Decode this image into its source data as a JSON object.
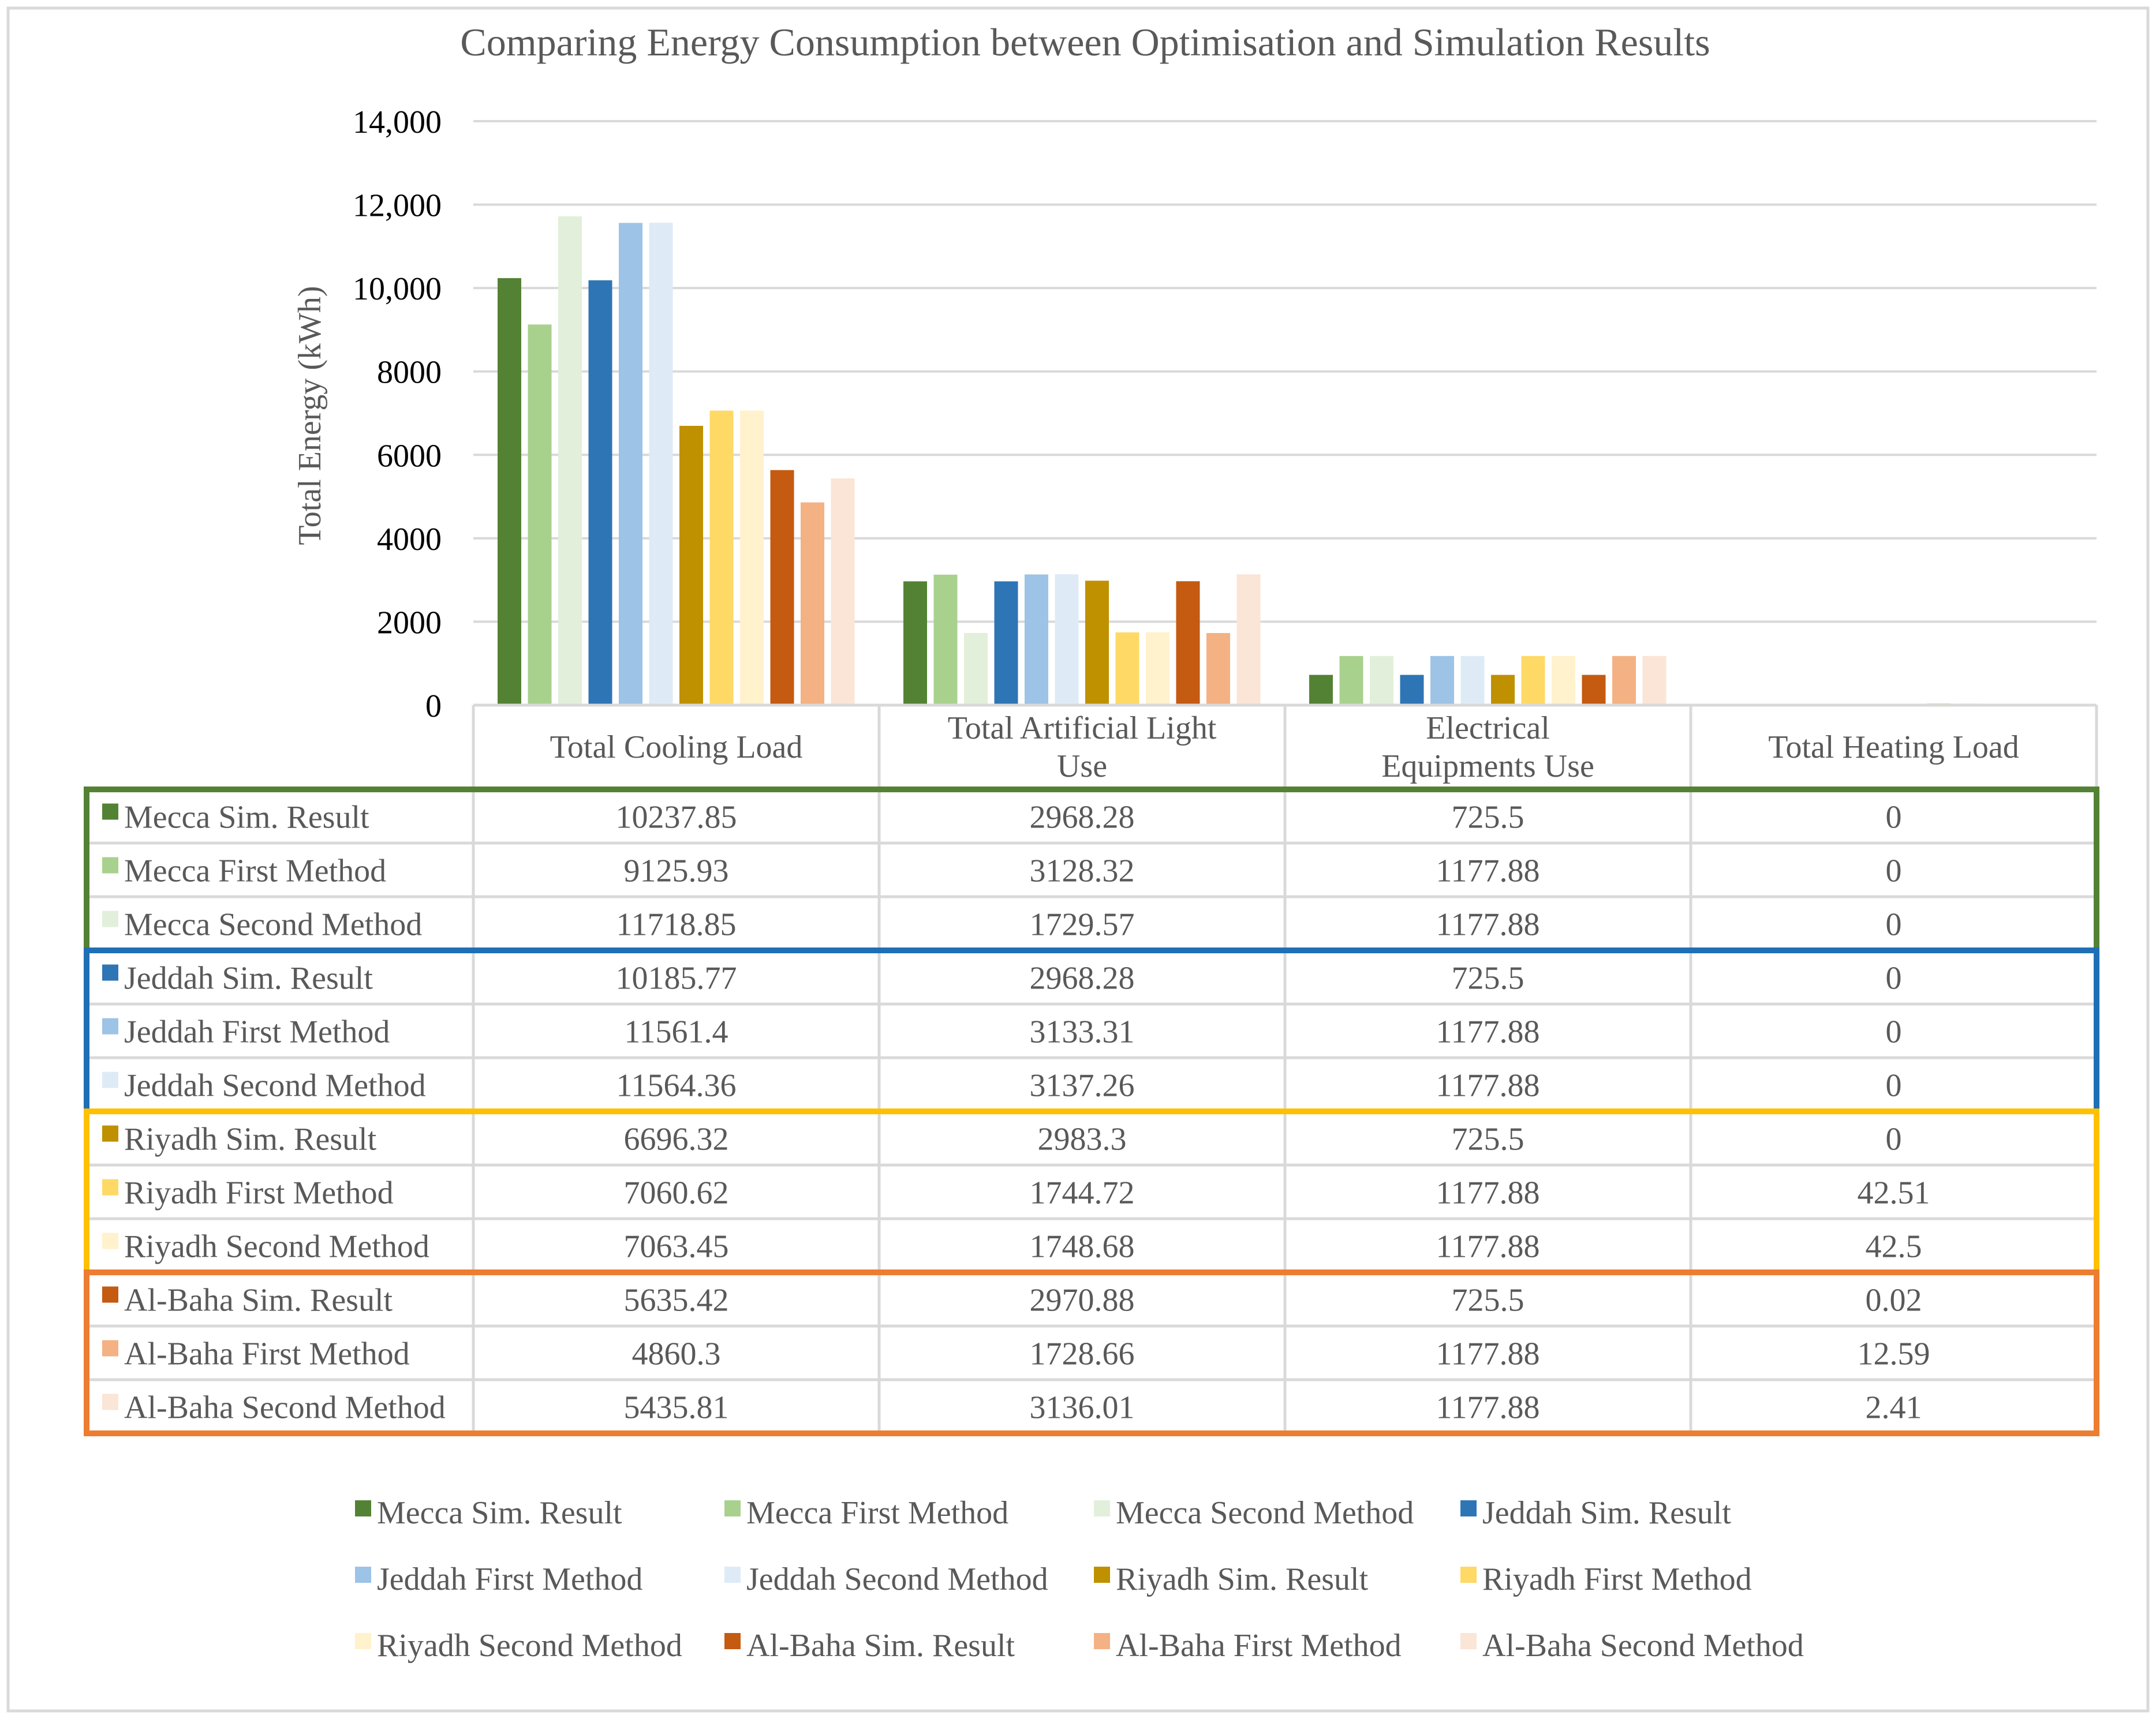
{
  "chart_data": {
    "type": "bar",
    "title": "Comparing Energy Consumption between Optimisation  and Simulation Results",
    "ylabel": "Total Energy (kWh)",
    "xlabel": "",
    "ylim": [
      0,
      14000
    ],
    "yticks": [
      {
        "value": 0,
        "label": "0"
      },
      {
        "value": 2000,
        "label": "2000"
      },
      {
        "value": 4000,
        "label": "4000"
      },
      {
        "value": 6000,
        "label": "6000"
      },
      {
        "value": 8000,
        "label": "8000"
      },
      {
        "value": 10000,
        "label": "10,000"
      },
      {
        "value": 12000,
        "label": "12,000"
      },
      {
        "value": 14000,
        "label": "14,000"
      }
    ],
    "grid": true,
    "legend_position": "bottom",
    "categories": [
      [
        "Total Cooling Load"
      ],
      [
        "Total Artificial Light",
        "Use"
      ],
      [
        "Electrical",
        "Equipments Use"
      ],
      [
        "Total Heating Load"
      ]
    ],
    "series": [
      {
        "name": "Mecca Sim. Result",
        "color": "#548235",
        "values": [
          10237.85,
          2968.28,
          725.5,
          0
        ],
        "labels": [
          "10237.85",
          "2968.28",
          "725.5",
          "0"
        ]
      },
      {
        "name": "Mecca First Method",
        "color": "#A9D18E",
        "values": [
          9125.93,
          3128.32,
          1177.88,
          0
        ],
        "labels": [
          "9125.93",
          "3128.32",
          "1177.88",
          "0"
        ]
      },
      {
        "name": "Mecca Second Method",
        "color": "#E2EFDA",
        "values": [
          11718.85,
          1729.57,
          1177.88,
          0
        ],
        "labels": [
          "11718.85",
          "1729.57",
          "1177.88",
          "0"
        ]
      },
      {
        "name": "Jeddah Sim. Result",
        "color": "#2E75B6",
        "values": [
          10185.77,
          2968.28,
          725.5,
          0
        ],
        "labels": [
          "10185.77",
          "2968.28",
          "725.5",
          "0"
        ]
      },
      {
        "name": "Jeddah First Method",
        "color": "#9DC3E6",
        "values": [
          11561.4,
          3133.31,
          1177.88,
          0
        ],
        "labels": [
          "11561.4",
          "3133.31",
          "1177.88",
          "0"
        ]
      },
      {
        "name": "Jeddah Second Method",
        "color": "#DEEBF7",
        "values": [
          11564.36,
          3137.26,
          1177.88,
          0
        ],
        "labels": [
          "11564.36",
          "3137.26",
          "1177.88",
          "0"
        ]
      },
      {
        "name": "Riyadh Sim. Result",
        "color": "#BF9000",
        "values": [
          6696.32,
          2983.3,
          725.5,
          0
        ],
        "labels": [
          "6696.32",
          "2983.3",
          "725.5",
          "0"
        ]
      },
      {
        "name": "Riyadh First Method",
        "color": "#FFD966",
        "values": [
          7060.62,
          1744.72,
          1177.88,
          42.51
        ],
        "labels": [
          "7060.62",
          "1744.72",
          "1177.88",
          "42.51"
        ]
      },
      {
        "name": "Riyadh Second Method",
        "color": "#FFF2CC",
        "values": [
          7063.45,
          1748.68,
          1177.88,
          42.5
        ],
        "labels": [
          "7063.45",
          "1748.68",
          "1177.88",
          "42.5"
        ]
      },
      {
        "name": "Al-Baha Sim. Result",
        "color": "#C55A11",
        "values": [
          5635.42,
          2970.88,
          725.5,
          0.02
        ],
        "labels": [
          "5635.42",
          "2970.88",
          "725.5",
          "0.02"
        ]
      },
      {
        "name": "Al-Baha First Method",
        "color": "#F4B183",
        "values": [
          4860.3,
          1728.66,
          1177.88,
          12.59
        ],
        "labels": [
          "4860.3",
          "1728.66",
          "1177.88",
          "12.59"
        ]
      },
      {
        "name": "Al-Baha Second Method",
        "color": "#FBE5D6",
        "values": [
          5435.81,
          3136.01,
          1177.88,
          2.41
        ],
        "labels": [
          "5435.81",
          "3136.01",
          "1177.88",
          "2.41"
        ]
      }
    ],
    "table_groups": [
      {
        "name": "Mecca",
        "color": "#548235"
      },
      {
        "name": "Jeddah",
        "color": "#1F6FB5"
      },
      {
        "name": "Riyadh",
        "color": "#FFC000"
      },
      {
        "name": "Al-Baha",
        "color": "#ED7D31"
      }
    ]
  }
}
